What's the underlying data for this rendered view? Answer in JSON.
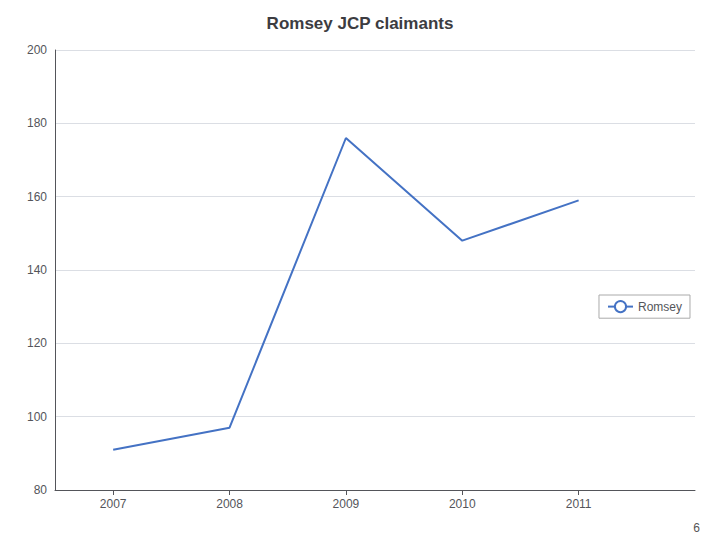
{
  "chart_data": {
    "type": "line",
    "title": "Romsey JCP claimants",
    "x": [
      2007,
      2008,
      2009,
      2010,
      2011
    ],
    "series": [
      {
        "name": "Romsey",
        "color": "#4472C4",
        "values": [
          91,
          97,
          176,
          148,
          159
        ]
      }
    ],
    "xlim": [
      2006.5,
      2012.0
    ],
    "xticks": [
      2007,
      2008,
      2009,
      2010,
      2011
    ],
    "ylim": [
      80,
      200
    ],
    "yticks": [
      80,
      100,
      120,
      140,
      160,
      180,
      200
    ],
    "grid": true,
    "legend": "right",
    "annotations": [
      "6"
    ]
  }
}
